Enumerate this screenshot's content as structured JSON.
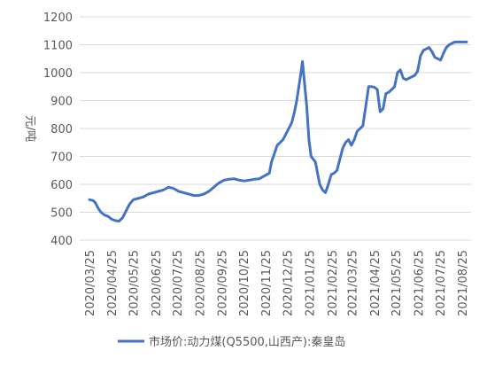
{
  "chart_data": {
    "type": "line",
    "title": "",
    "xlabel": "",
    "ylabel": "元/吨",
    "ylim": [
      400,
      1200
    ],
    "yticks": [
      400,
      500,
      600,
      700,
      800,
      900,
      1000,
      1100,
      1200
    ],
    "xticks": [
      "2020/03/25",
      "2020/04/25",
      "2020/05/25",
      "2020/06/25",
      "2020/07/25",
      "2020/08/25",
      "2020/09/25",
      "2020/10/25",
      "2020/11/25",
      "2020/12/25",
      "2021/01/25",
      "2021/02/25",
      "2021/03/25",
      "2021/04/25",
      "2021/05/25",
      "2021/06/25",
      "2021/07/25",
      "2021/08/25"
    ],
    "grid": "horizontal",
    "legend_position": "bottom",
    "series": [
      {
        "name": "市场价:动力煤(Q5500,山西产):秦皇岛",
        "color": "#4472C4",
        "x": [
          "2020/03/25",
          "2020/03/30",
          "2020/04/02",
          "2020/04/06",
          "2020/04/10",
          "2020/04/15",
          "2020/04/20",
          "2020/04/25",
          "2020/04/30",
          "2020/05/05",
          "2020/05/10",
          "2020/05/15",
          "2020/05/20",
          "2020/05/25",
          "2020/06/01",
          "2020/06/08",
          "2020/06/15",
          "2020/06/22",
          "2020/06/29",
          "2020/07/06",
          "2020/07/13",
          "2020/07/20",
          "2020/07/27",
          "2020/08/03",
          "2020/08/10",
          "2020/08/17",
          "2020/08/24",
          "2020/08/31",
          "2020/09/07",
          "2020/09/14",
          "2020/09/21",
          "2020/09/28",
          "2020/10/05",
          "2020/10/12",
          "2020/10/19",
          "2020/10/26",
          "2020/11/02",
          "2020/11/09",
          "2020/11/16",
          "2020/11/23",
          "2020/11/30",
          "2020/12/03",
          "2020/12/07",
          "2020/12/11",
          "2020/12/15",
          "2020/12/19",
          "2020/12/23",
          "2020/12/27",
          "2020/12/31",
          "2021/01/04",
          "2021/01/07",
          "2021/01/10",
          "2021/01/13",
          "2021/01/15",
          "2021/01/18",
          "2021/01/21",
          "2021/01/24",
          "2021/01/27",
          "2021/01/30",
          "2021/02/02",
          "2021/02/05",
          "2021/02/08",
          "2021/02/12",
          "2021/02/16",
          "2021/02/20",
          "2021/02/24",
          "2021/02/28",
          "2021/03/04",
          "2021/03/08",
          "2021/03/12",
          "2021/03/16",
          "2021/03/20",
          "2021/03/24",
          "2021/03/28",
          "2021/04/01",
          "2021/04/05",
          "2021/04/09",
          "2021/04/13",
          "2021/04/17",
          "2021/04/21",
          "2021/04/25",
          "2021/04/29",
          "2021/05/03",
          "2021/05/07",
          "2021/05/11",
          "2021/05/15",
          "2021/05/19",
          "2021/05/23",
          "2021/05/27",
          "2021/05/31",
          "2021/06/04",
          "2021/06/08",
          "2021/06/12",
          "2021/06/16",
          "2021/06/20",
          "2021/06/24",
          "2021/06/28",
          "2021/07/02",
          "2021/07/06",
          "2021/07/10",
          "2021/07/14",
          "2021/07/18",
          "2021/07/22",
          "2021/07/26",
          "2021/07/30",
          "2021/08/03",
          "2021/08/07",
          "2021/08/11",
          "2021/08/15",
          "2021/08/19",
          "2021/08/23",
          "2021/08/27",
          "2021/08/31"
        ],
        "values": [
          545,
          542,
          535,
          515,
          500,
          490,
          485,
          475,
          470,
          468,
          480,
          505,
          530,
          545,
          550,
          555,
          565,
          570,
          575,
          580,
          590,
          585,
          575,
          570,
          565,
          560,
          560,
          565,
          575,
          590,
          605,
          615,
          618,
          620,
          615,
          612,
          615,
          618,
          620,
          630,
          640,
          680,
          710,
          740,
          750,
          760,
          780,
          800,
          820,
          860,
          900,
          950,
          1000,
          1040,
          960,
          880,
          760,
          700,
          690,
          680,
          640,
          600,
          580,
          570,
          600,
          635,
          640,
          650,
          690,
          730,
          750,
          760,
          740,
          760,
          790,
          800,
          810,
          880,
          950,
          950,
          948,
          940,
          860,
          870,
          925,
          930,
          940,
          950,
          1000,
          1010,
          980,
          975,
          980,
          985,
          990,
          1005,
          1060,
          1080,
          1085,
          1090,
          1075,
          1055,
          1050,
          1045,
          1070,
          1090,
          1100,
          1105,
          1110,
          1110,
          1110,
          1110,
          1110
        ]
      }
    ]
  }
}
